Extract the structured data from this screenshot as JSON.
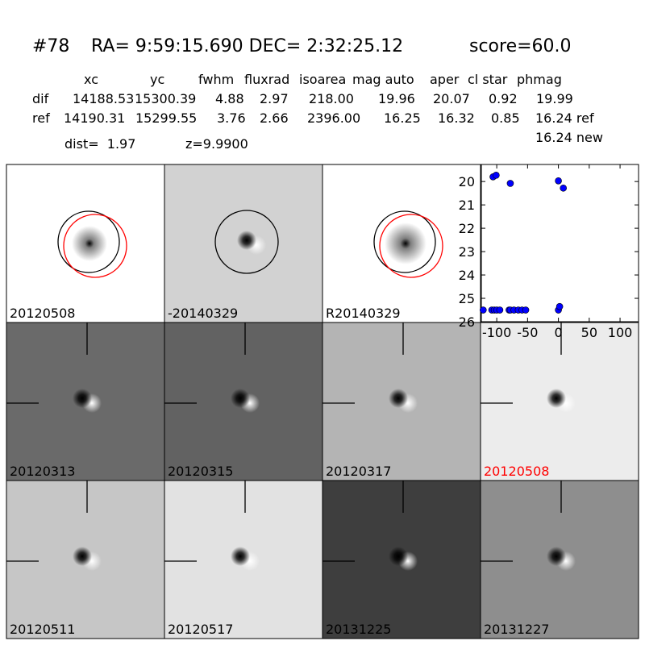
{
  "header": {
    "id": "#78",
    "coords": "RA= 9:59:15.690 DEC= 2:32:25.12",
    "score": "score=60.0"
  },
  "table": {
    "columns": [
      "xc",
      "yc",
      "fwhm",
      "fluxrad",
      "isoarea",
      "mag auto",
      "aper",
      "cl star",
      "phmag"
    ],
    "rows": [
      [
        "dif",
        "14188.53",
        "15300.39",
        "4.88",
        "2.97",
        "218.00",
        "19.96",
        "20.07",
        "0.92",
        "19.99"
      ],
      [
        "ref",
        "14190.31",
        "15299.55",
        "3.76",
        "2.66",
        "2396.00",
        "16.25",
        "16.32",
        "0.85",
        "16.24 ref"
      ]
    ],
    "note": "16.24 new"
  },
  "dist": "dist=  1.97",
  "z": "z=9.9900",
  "tiles": [
    {
      "label": "20120508",
      "background": "#ffffff"
    },
    {
      "label": "-20140329",
      "background": "#d2d2d2"
    },
    {
      "label": "R20140329",
      "background": "#ffffff"
    },
    {
      "label": "20120313",
      "background": "#6a6a6a"
    },
    {
      "label": "20120315",
      "background": "#626262"
    },
    {
      "label": "20120317",
      "background": "#b4b4b4"
    },
    {
      "label": "20120508",
      "background": "#ececec",
      "color": "#ff0000"
    },
    {
      "label": "20120511",
      "background": "#c6c6c6"
    },
    {
      "label": "20120517",
      "background": "#e2e2e2"
    },
    {
      "label": "20131225",
      "background": "#3e3e3e"
    },
    {
      "label": "20131227",
      "background": "#8e8e8e"
    }
  ],
  "chart_data": {
    "type": "scatter",
    "color": "#0000ff",
    "x": [
      -106,
      -101,
      -78,
      0,
      8,
      -122,
      -108,
      -104,
      -100,
      -95,
      -80,
      -78,
      -72,
      -65,
      -59,
      -53,
      0,
      2
    ],
    "values": [
      19.8,
      19.73,
      20.08,
      19.97,
      20.28,
      25.5,
      25.5,
      25.5,
      25.5,
      25.5,
      25.5,
      25.5,
      25.5,
      25.5,
      25.5,
      25.5,
      25.5,
      25.35
    ],
    "xlim": [
      -125,
      130
    ],
    "ylim": [
      26,
      19.27
    ],
    "xticks": [
      -100,
      -50,
      0,
      50,
      100
    ],
    "yticks": [
      20,
      21,
      22,
      23,
      24,
      25,
      26
    ]
  }
}
